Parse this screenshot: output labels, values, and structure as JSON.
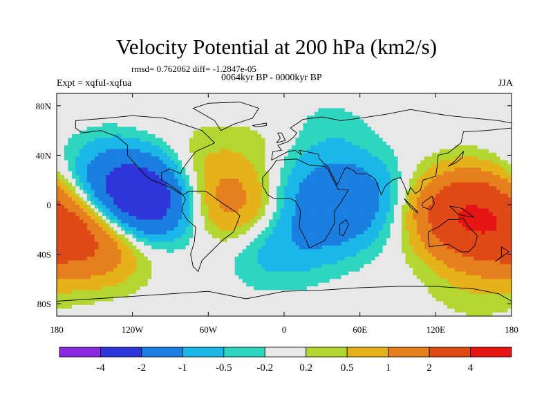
{
  "chart_data": {
    "type": "heatmap",
    "title": "Velocity Potential at 200 hPa (km2/s)",
    "stats_text": "rmsd= 0.762062 diff= -1.2847e-05",
    "experiment_text": "Expt = xqfuI-xqfua",
    "period_text": "0064kyr BP - 0000kyr BP",
    "season_text": "JJA",
    "x_ticks": [
      "180",
      "120W",
      "60W",
      "0",
      "60E",
      "120E",
      "180"
    ],
    "x_tick_values": [
      -180,
      -120,
      -60,
      0,
      60,
      120,
      180
    ],
    "y_ticks": [
      "80N",
      "40N",
      "0",
      "40S",
      "80S"
    ],
    "y_tick_values": [
      80,
      40,
      0,
      -40,
      -80
    ],
    "xlim": [
      -180,
      180
    ],
    "ylim": [
      -90,
      90
    ],
    "colorbar": {
      "labels": [
        "-4",
        "-2",
        "-1",
        "-0.5",
        "-0.2",
        "0.2",
        "0.5",
        "1",
        "2",
        "4"
      ],
      "bounds": [
        -4,
        -2,
        -1,
        -0.5,
        -0.2,
        0.2,
        0.5,
        1,
        2,
        4
      ],
      "colors": [
        "#8a2be2",
        "#2f35d8",
        "#1a7fe0",
        "#1ab8e8",
        "#2ed6c0",
        "#e8e8e8",
        "#b4d632",
        "#e6b21a",
        "#e6801e",
        "#e04a18",
        "#e61414"
      ]
    },
    "anomalies": [
      {
        "lon": -110,
        "lat": 2,
        "value": -3.0
      },
      {
        "lon": -132,
        "lat": 25,
        "value": -1.2
      },
      {
        "lon": 55,
        "lat": 8,
        "value": -1.2
      },
      {
        "lon": 35,
        "lat": -15,
        "value": -0.9
      },
      {
        "lon": 10,
        "lat": 20,
        "value": -0.6
      },
      {
        "lon": -8,
        "lat": -35,
        "value": -0.7
      },
      {
        "lon": 30,
        "lat": 55,
        "value": -0.4
      },
      {
        "lon": -165,
        "lat": -25,
        "value": 1.8
      },
      {
        "lon": -140,
        "lat": -35,
        "value": 0.8
      },
      {
        "lon": 145,
        "lat": -5,
        "value": 3.4
      },
      {
        "lon": 155,
        "lat": -28,
        "value": 1.0
      },
      {
        "lon": -40,
        "lat": 0,
        "value": 1.3
      },
      {
        "lon": -68,
        "lat": 25,
        "value": 0.55
      },
      {
        "lon": -5,
        "lat": 45,
        "value": 0.4
      },
      {
        "lon": -100,
        "lat": 75,
        "value": 0.15
      },
      {
        "lon": 150,
        "lat": -70,
        "value": 0.25
      }
    ]
  }
}
